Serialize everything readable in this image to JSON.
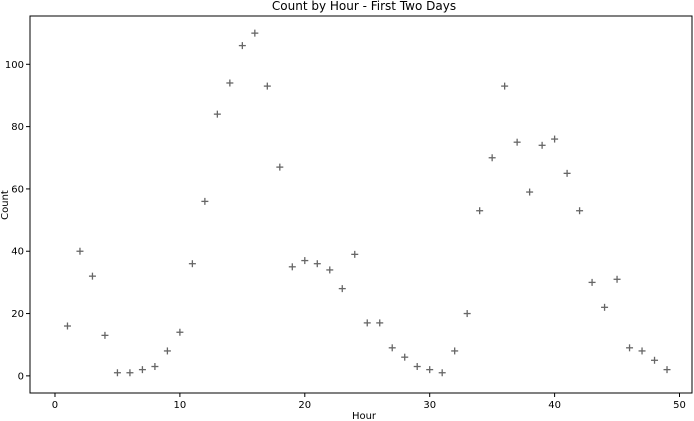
{
  "chart_data": {
    "type": "scatter",
    "title": "Count by Hour - First Two Days",
    "xlabel": "Hour",
    "ylabel": "Count",
    "xlim": [
      -2,
      51
    ],
    "ylim": [
      -5.5,
      115.5
    ],
    "xticks": [
      0,
      10,
      20,
      30,
      40,
      50
    ],
    "yticks": [
      0,
      20,
      40,
      60,
      80,
      100
    ],
    "marker": "plus",
    "marker_color": "#666666",
    "grid": false,
    "series": [
      {
        "x": [
          1,
          2,
          3,
          4,
          5,
          6,
          7,
          8,
          9,
          10,
          11,
          12,
          13,
          14,
          15,
          16,
          17,
          18,
          19,
          20,
          21,
          22,
          23,
          24,
          25,
          26,
          27,
          28,
          29,
          30,
          31,
          32,
          33,
          34,
          35,
          36,
          37,
          38,
          39,
          40,
          41,
          42,
          43,
          44,
          45,
          46,
          47,
          48,
          49
        ],
        "y": [
          16,
          40,
          32,
          13,
          1,
          1,
          2,
          3,
          8,
          14,
          36,
          56,
          84,
          94,
          106,
          110,
          93,
          67,
          35,
          37,
          36,
          34,
          28,
          39,
          17,
          17,
          9,
          6,
          3,
          2,
          1,
          8,
          20,
          53,
          70,
          93,
          75,
          59,
          74,
          76,
          65,
          53,
          30,
          22,
          31,
          9,
          8,
          5,
          2
        ]
      }
    ]
  }
}
